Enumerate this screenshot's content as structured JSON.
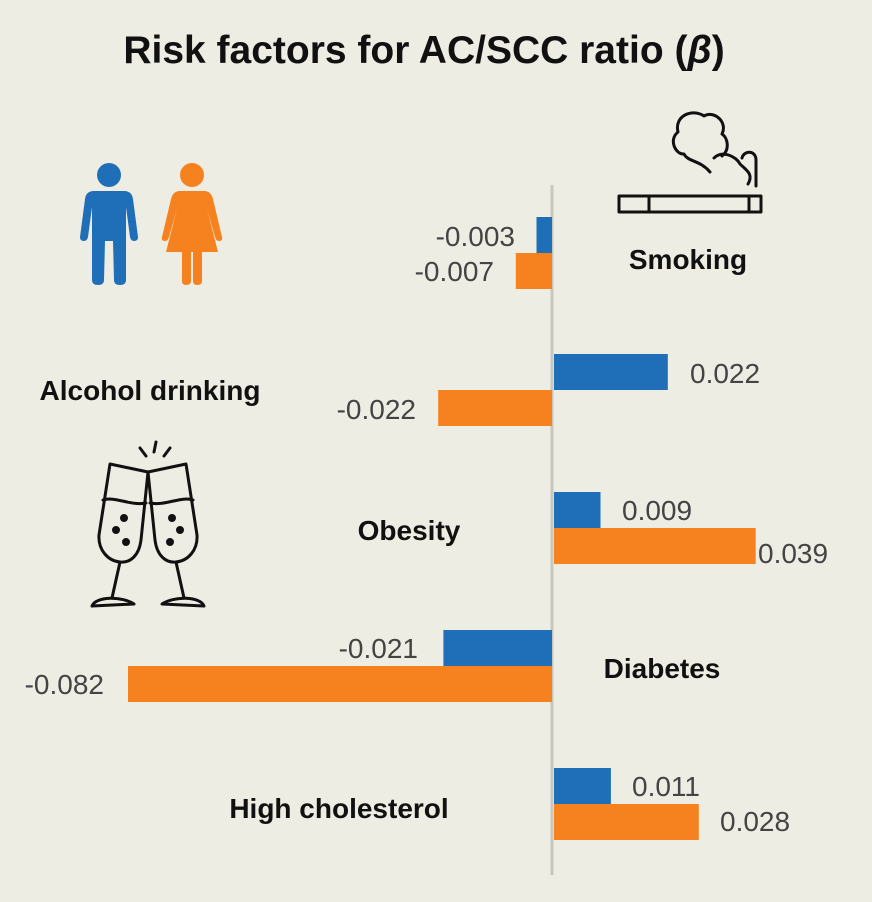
{
  "chart_data": {
    "type": "bar",
    "orientation": "horizontal",
    "title": "Risk factors for AC/SCC ratio (β)",
    "title_prefix": "Risk factors for AC/SCC ratio (",
    "title_symbol": "β",
    "title_suffix": ")",
    "categories": [
      "Smoking",
      "Alcohol drinking",
      "Obesity",
      "Diabetes",
      "High cholesterol"
    ],
    "series": [
      {
        "name": "Male",
        "color": "#1f6fb8",
        "values": [
          -0.003,
          0.022,
          0.009,
          -0.021,
          0.011
        ],
        "labels": [
          "-0.003",
          "0.022",
          "0.009",
          "-0.021",
          "0.011"
        ]
      },
      {
        "name": "Female",
        "color": "#f5821f",
        "values": [
          -0.007,
          -0.022,
          0.039,
          -0.082,
          0.028
        ],
        "labels": [
          "-0.007",
          "-0.022",
          "0.039",
          "-0.082",
          "0.028"
        ]
      }
    ],
    "xlim": [
      -0.082,
      0.039
    ],
    "legend": "none (male / female icons)"
  },
  "icons": {
    "male": "male-person-icon",
    "female": "female-person-icon",
    "cigarette": "cigarette-icon",
    "champagne": "champagne-glasses-icon"
  }
}
